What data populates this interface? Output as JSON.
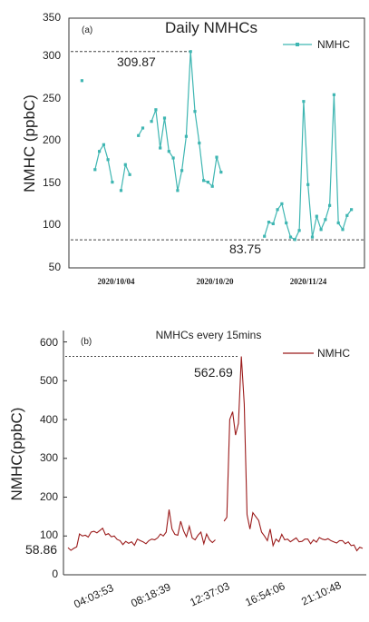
{
  "chart_data": [
    {
      "type": "line",
      "panel": "(a)",
      "title": "Daily NMHCs",
      "xlabel": "",
      "ylabel": "NMHC (ppbC)",
      "ylim": [
        50,
        350
      ],
      "yticks": [
        "50",
        "100",
        "150",
        "200",
        "250",
        "300",
        "350"
      ],
      "xtick_labels": [
        "2020/10/04",
        "2020/10/20",
        "2020/11/24"
      ],
      "legend": {
        "entries": [
          "NMHC"
        ],
        "placement": "top-right"
      },
      "color": "#3fb6b2",
      "grid": false,
      "series": [
        {
          "name": "NMHC",
          "segments": [
            [
              [
                0,
                275
              ]
            ],
            [
              [
                3,
                168
              ],
              [
                4,
                190
              ],
              [
                5,
                198
              ],
              [
                6,
                180
              ],
              [
                7,
                153
              ]
            ],
            [
              [
                9,
                143
              ],
              [
                10,
                174
              ],
              [
                11,
                162
              ]
            ],
            [
              [
                13,
                209
              ],
              [
                14,
                218
              ]
            ],
            [
              [
                16,
                226
              ],
              [
                17,
                240
              ],
              [
                18,
                194
              ],
              [
                19,
                230
              ],
              [
                20,
                190
              ],
              [
                21,
                182
              ],
              [
                22,
                143
              ],
              [
                23,
                167
              ],
              [
                24,
                208
              ],
              [
                25,
                309.87
              ],
              [
                26,
                238
              ],
              [
                27,
                200
              ],
              [
                28,
                155
              ],
              [
                29,
                153
              ],
              [
                30,
                148
              ],
              [
                31,
                183
              ],
              [
                32,
                165
              ]
            ]
          ]
        },
        {
          "name": "NMHC",
          "segments": [
            [
              [
                42,
                88
              ],
              [
                43,
                105
              ],
              [
                44,
                103
              ],
              [
                45,
                120
              ],
              [
                46,
                127
              ],
              [
                47,
                104
              ],
              [
                48,
                87
              ],
              [
                49,
                84
              ],
              [
                50,
                95
              ],
              [
                51,
                250
              ],
              [
                52,
                150
              ],
              [
                53,
                87
              ],
              [
                54,
                112
              ],
              [
                55,
                96
              ],
              [
                56,
                108
              ],
              [
                57,
                125
              ],
              [
                58,
                258
              ],
              [
                59,
                104
              ],
              [
                60,
                96
              ],
              [
                61,
                113
              ],
              [
                62,
                120
              ]
            ]
          ]
        }
      ],
      "reference_lines": [
        {
          "label": "309.87",
          "value": 309.87
        },
        {
          "label": "83.75",
          "value": 83.75
        }
      ]
    },
    {
      "type": "line",
      "panel": "(b)",
      "title": "NMHCs every 15mins",
      "xlabel": "",
      "ylabel": "NMHC(ppbC)",
      "ylim": [
        0,
        620
      ],
      "yticks": [
        "0",
        "100",
        "200",
        "300",
        "400",
        "500",
        "600"
      ],
      "xtick_labels": [
        "04:03:53",
        "08:18:39",
        "12:37:03",
        "16:54:06",
        "21:10:48"
      ],
      "legend": {
        "entries": [
          "NMHC"
        ],
        "placement": "top-right"
      },
      "color": "#9b1b1b",
      "grid": false,
      "series": [
        {
          "name": "NMHC",
          "values": [
            70,
            63,
            68,
            72,
            105,
            100,
            102,
            97,
            110,
            112,
            108,
            114,
            120,
            103,
            106,
            98,
            100,
            91,
            88,
            78,
            86,
            81,
            85,
            76,
            92,
            88,
            85,
            80,
            88,
            92,
            90,
            95,
            105,
            100,
            110,
            168,
            118,
            104,
            102,
            138,
            113,
            98,
            125,
            95,
            90,
            102,
            110,
            80,
            105,
            90,
            83,
            90,
            null,
            null,
            138,
            148,
            400,
            420,
            360,
            390,
            562.69,
            440,
            155,
            118,
            160,
            150,
            140,
            110,
            100,
            88,
            118,
            75,
            92,
            85,
            104,
            90,
            92,
            85,
            90,
            95,
            85,
            86,
            92,
            92,
            80,
            90,
            84,
            96,
            92,
            90,
            93,
            88,
            85,
            82,
            88,
            88,
            80,
            85,
            75,
            77,
            62,
            71,
            68
          ]
        }
      ],
      "reference_lines": [
        {
          "label": "562.69",
          "value": 562.69
        },
        {
          "label": "58.86",
          "value": 58.86
        }
      ]
    }
  ]
}
